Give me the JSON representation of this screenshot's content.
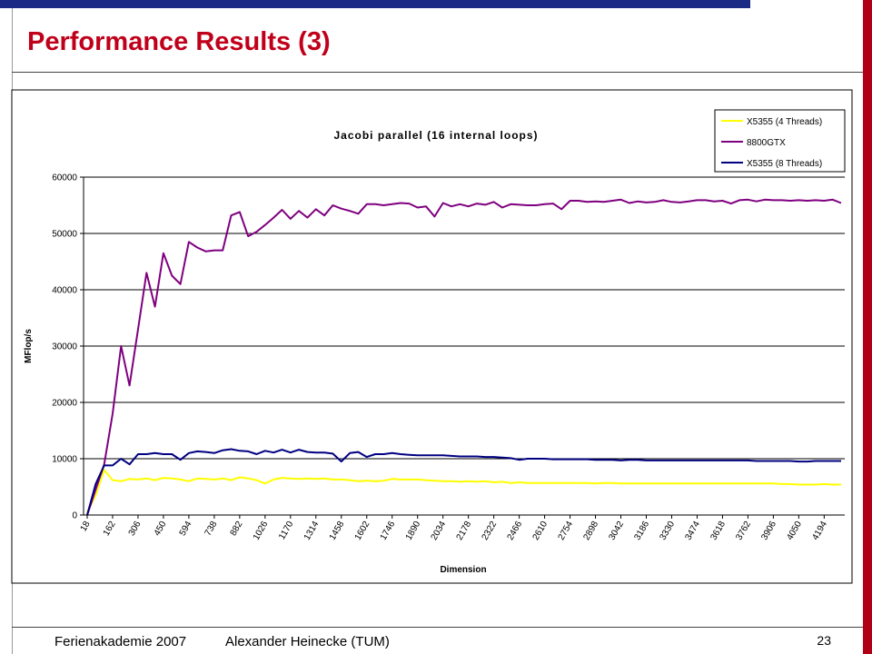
{
  "slide": {
    "title": "Performance Results (3)",
    "footer_left": "Ferienakademie 2007",
    "footer_center": "Alexander Heinecke (TUM)",
    "page_number": "23",
    "colors": {
      "title": "#c0001a",
      "top_bar": "#1b2a85",
      "right_bar": "#b00016"
    }
  },
  "chart_data": {
    "type": "line",
    "title": "Jacobi parallel (16 internal loops)",
    "xlabel": "Dimension",
    "ylabel": "MFlop/s",
    "ylim": [
      0,
      60000
    ],
    "yticks": [
      0,
      10000,
      20000,
      30000,
      40000,
      50000,
      60000
    ],
    "x_start": 18,
    "x_step": 48,
    "x_tick_labels": [
      "18",
      "162",
      "306",
      "450",
      "594",
      "738",
      "882",
      "1026",
      "1170",
      "1314",
      "1458",
      "1602",
      "1746",
      "1890",
      "2034",
      "2178",
      "2322",
      "2466",
      "2610",
      "2754",
      "2898",
      "3042",
      "3186",
      "3330",
      "3474",
      "3618",
      "3762",
      "3906",
      "4050",
      "4194"
    ],
    "grid": true,
    "legend_position": "top-right",
    "series": [
      {
        "name": "X5355 (4 Threads)",
        "color": "#ffff00",
        "values": [
          500,
          3500,
          8000,
          6200,
          6000,
          6400,
          6300,
          6500,
          6200,
          6600,
          6500,
          6300,
          6000,
          6500,
          6400,
          6300,
          6500,
          6200,
          6700,
          6500,
          6200,
          5600,
          6300,
          6600,
          6500,
          6400,
          6500,
          6400,
          6500,
          6300,
          6300,
          6200,
          6000,
          6100,
          6000,
          6100,
          6400,
          6300,
          6300,
          6300,
          6200,
          6100,
          6000,
          6000,
          5900,
          6000,
          5900,
          6000,
          5800,
          5900,
          5700,
          5800,
          5700,
          5700,
          5700,
          5700,
          5700,
          5700,
          5700,
          5700,
          5600,
          5700,
          5700,
          5600,
          5600,
          5600,
          5600,
          5600,
          5600,
          5600,
          5600,
          5600,
          5600,
          5600,
          5600,
          5600,
          5600,
          5600,
          5600,
          5600,
          5600,
          5600,
          5500,
          5500,
          5400,
          5400,
          5400,
          5500,
          5400,
          5400
        ]
      },
      {
        "name": "8800GTX",
        "color": "#7f007f",
        "values": [
          0,
          4500,
          9000,
          18000,
          30000,
          23000,
          33000,
          43000,
          37000,
          46500,
          42500,
          41000,
          48500,
          47500,
          46800,
          47000,
          47000,
          53200,
          53800,
          49500,
          50300,
          51500,
          52800,
          54200,
          52600,
          54000,
          52800,
          54300,
          53200,
          55000,
          54400,
          54000,
          53500,
          55200,
          55200,
          55000,
          55200,
          55400,
          55300,
          54600,
          54800,
          53000,
          55400,
          54800,
          55200,
          54800,
          55300,
          55100,
          55600,
          54600,
          55200,
          55100,
          55000,
          55000,
          55200,
          55300,
          54300,
          55800,
          55800,
          55600,
          55700,
          55600,
          55800,
          56000,
          55400,
          55700,
          55500,
          55600,
          55900,
          55600,
          55500,
          55700,
          55900,
          55900,
          55700,
          55800,
          55300,
          55900,
          56000,
          55700,
          56000,
          55900,
          55900,
          55800,
          55900,
          55800,
          55900,
          55800,
          56000,
          55400
        ]
      },
      {
        "name": "X5355 (8 Threads)",
        "color": "#000080",
        "values": [
          0,
          5500,
          8800,
          8800,
          10000,
          9000,
          10800,
          10800,
          11000,
          10800,
          10800,
          9800,
          11000,
          11300,
          11200,
          11000,
          11500,
          11700,
          11400,
          11300,
          10800,
          11400,
          11100,
          11600,
          11100,
          11600,
          11200,
          11100,
          11100,
          10900,
          9500,
          11000,
          11200,
          10300,
          10800,
          10800,
          11000,
          10800,
          10700,
          10600,
          10600,
          10600,
          10600,
          10500,
          10400,
          10400,
          10400,
          10300,
          10300,
          10200,
          10100,
          9800,
          10000,
          10000,
          10000,
          9900,
          9900,
          9900,
          9900,
          9900,
          9800,
          9800,
          9800,
          9700,
          9800,
          9800,
          9700,
          9700,
          9700,
          9700,
          9700,
          9700,
          9700,
          9700,
          9700,
          9700,
          9700,
          9700,
          9700,
          9600,
          9600,
          9600,
          9600,
          9600,
          9500,
          9500,
          9600,
          9600,
          9600,
          9600
        ]
      }
    ]
  }
}
